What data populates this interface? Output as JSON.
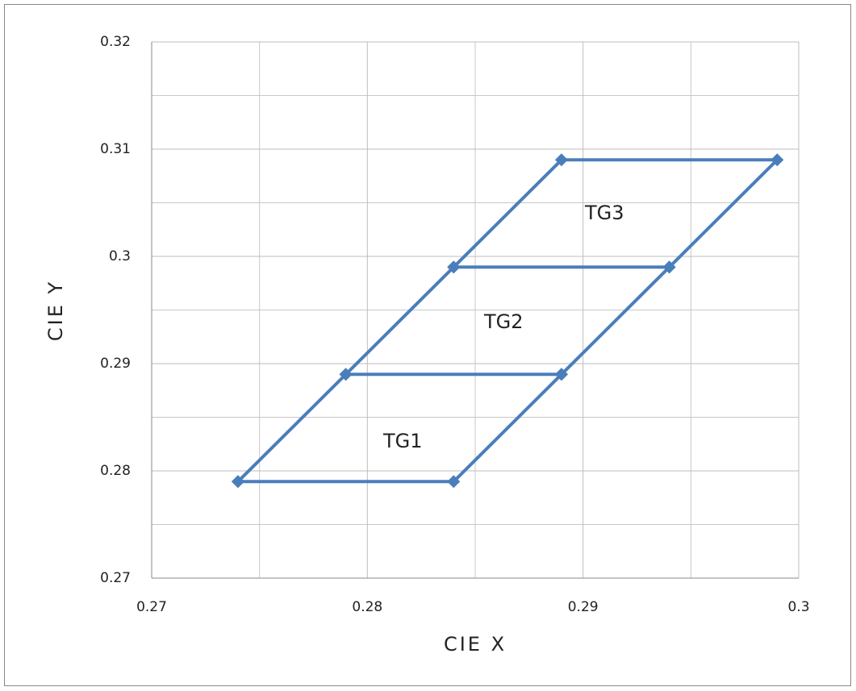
{
  "chart_data": {
    "type": "line",
    "x_label": "CIE X",
    "y_label": "CIE Y",
    "series": [
      {
        "color": "#4a7ebb",
        "x": [
          0.274,
          0.284,
          0.289,
          0.294,
          0.299,
          0.289,
          0.284,
          0.279,
          0.274,
          null,
          0.279,
          0.289,
          null,
          0.284,
          0.294
        ],
        "values": [
          0.279,
          0.279,
          0.289,
          0.299,
          0.309,
          0.309,
          0.299,
          0.289,
          0.279,
          null,
          0.289,
          0.289,
          null,
          0.299,
          0.299
        ]
      }
    ],
    "annotations": [
      "TG1",
      "TG2",
      "TG3"
    ],
    "xlim": [
      0.27,
      0.3
    ],
    "ylim": [
      0.27,
      0.32
    ],
    "xticks": [
      0.27,
      0.28,
      0.29,
      0.3
    ],
    "yticks": [
      0.27,
      0.28,
      0.29,
      0.3,
      0.31,
      0.32
    ],
    "minor_xticks": [
      0.275,
      0.285,
      0.295
    ],
    "minor_yticks": [
      0.275,
      0.285,
      0.295,
      0.305,
      0.315
    ],
    "grid": true
  }
}
